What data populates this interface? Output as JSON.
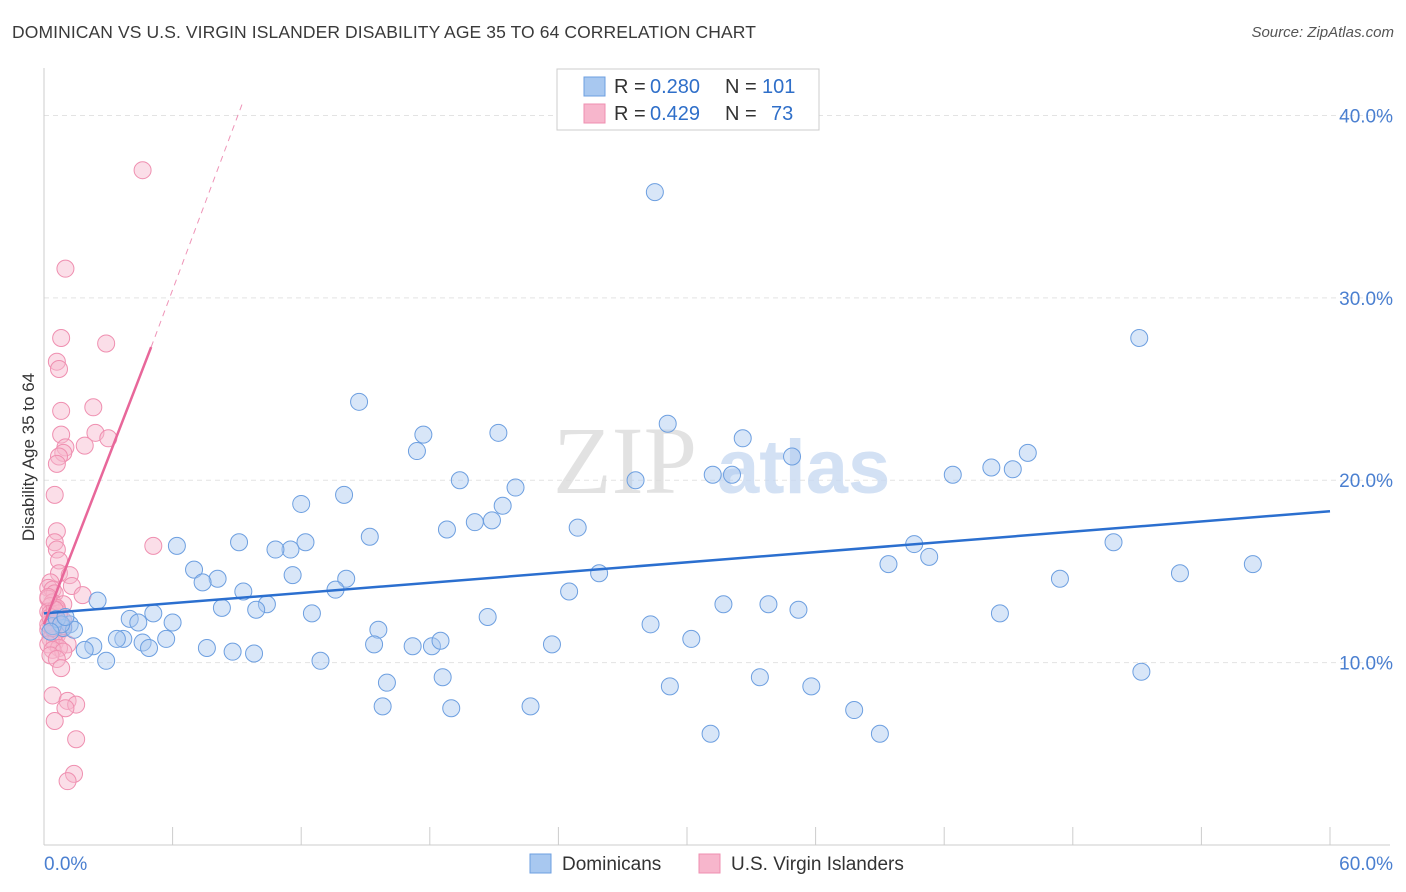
{
  "title": "DOMINICAN VS U.S. VIRGIN ISLANDER DISABILITY AGE 35 TO 64 CORRELATION CHART",
  "source": "Source: ZipAtlas.com",
  "watermark": {
    "zip": "ZIP",
    "atlas": "atlas"
  },
  "colors": {
    "blue_fill": "#a8c8f0",
    "blue_stroke": "#6d9fe0",
    "blue_line": "#2b6fcf",
    "pink_fill": "#f7b6cc",
    "pink_stroke": "#ef8fb0",
    "pink_line": "#e8679a",
    "grid": "#e3e3e3",
    "axis_text": "#4a7fd0"
  },
  "legend": {
    "rows": [
      {
        "r_label": "R =",
        "r_value": "0.280",
        "n_label": "N =",
        "n_value": "101"
      },
      {
        "r_label": "R =",
        "r_value": "0.429",
        "n_label": "N =",
        "n_value": "73"
      }
    ]
  },
  "bottom_legend": [
    "Dominicans",
    "U.S. Virgin Islanders"
  ],
  "chart_data": {
    "type": "scatter",
    "title": "DOMINICAN VS U.S. VIRGIN ISLANDER DISABILITY AGE 35 TO 64 CORRELATION CHART",
    "xlabel": "",
    "ylabel": "Disability Age 35 to 64",
    "xlim": [
      0,
      60
    ],
    "ylim": [
      0,
      42
    ],
    "x_tick_labels": [
      "0.0%",
      "60.0%"
    ],
    "y_ticks": [
      10,
      20,
      30,
      40
    ],
    "y_tick_labels": [
      "10.0%",
      "20.0%",
      "30.0%",
      "40.0%"
    ],
    "series": [
      {
        "name": "Dominicans",
        "R": 0.28,
        "N": 101,
        "trend": {
          "x": [
            0,
            60
          ],
          "y": [
            12.7,
            18.3
          ]
        },
        "points": [
          [
            28.5,
            35.8
          ],
          [
            51.1,
            27.8
          ],
          [
            14.7,
            24.3
          ],
          [
            17.7,
            22.5
          ],
          [
            21.2,
            22.6
          ],
          [
            29.1,
            23.1
          ],
          [
            17.4,
            21.6
          ],
          [
            32.6,
            22.3
          ],
          [
            34.9,
            21.3
          ],
          [
            31.2,
            20.3
          ],
          [
            32.1,
            20.3
          ],
          [
            42.4,
            20.3
          ],
          [
            44.2,
            20.7
          ],
          [
            45.2,
            20.6
          ],
          [
            45.9,
            21.5
          ],
          [
            19.4,
            20.0
          ],
          [
            27.6,
            20.0
          ],
          [
            22.0,
            19.6
          ],
          [
            14.0,
            19.2
          ],
          [
            12.0,
            18.7
          ],
          [
            21.4,
            18.6
          ],
          [
            20.9,
            17.8
          ],
          [
            20.1,
            17.7
          ],
          [
            18.8,
            17.3
          ],
          [
            24.9,
            17.4
          ],
          [
            15.2,
            16.9
          ],
          [
            12.2,
            16.6
          ],
          [
            9.1,
            16.6
          ],
          [
            6.2,
            16.4
          ],
          [
            11.5,
            16.2
          ],
          [
            10.8,
            16.2
          ],
          [
            40.6,
            16.5
          ],
          [
            41.3,
            15.8
          ],
          [
            39.4,
            15.4
          ],
          [
            49.9,
            16.6
          ],
          [
            56.4,
            15.4
          ],
          [
            7.0,
            15.1
          ],
          [
            11.6,
            14.8
          ],
          [
            14.1,
            14.6
          ],
          [
            25.9,
            14.9
          ],
          [
            53.0,
            14.9
          ],
          [
            47.4,
            14.6
          ],
          [
            8.1,
            14.6
          ],
          [
            7.4,
            14.4
          ],
          [
            9.3,
            13.9
          ],
          [
            13.6,
            14.0
          ],
          [
            24.5,
            13.9
          ],
          [
            2.5,
            13.4
          ],
          [
            10.4,
            13.2
          ],
          [
            8.3,
            13.0
          ],
          [
            9.9,
            12.9
          ],
          [
            5.1,
            12.7
          ],
          [
            12.5,
            12.7
          ],
          [
            20.7,
            12.5
          ],
          [
            31.7,
            13.2
          ],
          [
            33.8,
            13.2
          ],
          [
            35.2,
            12.9
          ],
          [
            44.6,
            12.7
          ],
          [
            4.0,
            12.4
          ],
          [
            4.4,
            12.2
          ],
          [
            6.0,
            12.2
          ],
          [
            1.2,
            12.1
          ],
          [
            0.9,
            11.9
          ],
          [
            1.4,
            11.8
          ],
          [
            15.6,
            11.8
          ],
          [
            28.3,
            12.1
          ],
          [
            3.7,
            11.3
          ],
          [
            3.4,
            11.3
          ],
          [
            5.7,
            11.3
          ],
          [
            30.2,
            11.3
          ],
          [
            4.6,
            11.1
          ],
          [
            2.3,
            10.9
          ],
          [
            15.4,
            11.0
          ],
          [
            17.2,
            10.9
          ],
          [
            18.1,
            10.9
          ],
          [
            18.5,
            11.2
          ],
          [
            23.7,
            11.0
          ],
          [
            7.6,
            10.8
          ],
          [
            1.9,
            10.7
          ],
          [
            4.9,
            10.8
          ],
          [
            8.8,
            10.6
          ],
          [
            9.8,
            10.5
          ],
          [
            2.9,
            10.1
          ],
          [
            12.9,
            10.1
          ],
          [
            51.2,
            9.5
          ],
          [
            16.0,
            8.9
          ],
          [
            18.6,
            9.2
          ],
          [
            29.2,
            8.7
          ],
          [
            33.4,
            9.2
          ],
          [
            35.8,
            8.7
          ],
          [
            15.8,
            7.6
          ],
          [
            19.0,
            7.5
          ],
          [
            22.7,
            7.6
          ],
          [
            37.8,
            7.4
          ],
          [
            31.1,
            6.1
          ],
          [
            39.0,
            6.1
          ],
          [
            0.4,
            12.0
          ],
          [
            0.6,
            12.4
          ],
          [
            0.8,
            12.1
          ],
          [
            0.3,
            11.7
          ],
          [
            1.0,
            12.5
          ]
        ]
      },
      {
        "name": "U.S. Virgin Islanders",
        "R": 0.429,
        "N": 73,
        "trend": {
          "x": [
            0,
            5.0
          ],
          "y": [
            12.1,
            27.3
          ]
        },
        "trend_ext": {
          "x": [
            5.0,
            9.3
          ],
          "y": [
            27.3,
            40.8
          ]
        },
        "points": [
          [
            4.6,
            37.0
          ],
          [
            1.0,
            31.6
          ],
          [
            0.8,
            27.8
          ],
          [
            2.9,
            27.5
          ],
          [
            0.6,
            26.5
          ],
          [
            0.7,
            26.1
          ],
          [
            2.3,
            24.0
          ],
          [
            0.8,
            23.8
          ],
          [
            2.4,
            22.6
          ],
          [
            0.8,
            22.5
          ],
          [
            3.0,
            22.3
          ],
          [
            1.9,
            21.9
          ],
          [
            1.0,
            21.8
          ],
          [
            0.9,
            21.5
          ],
          [
            0.7,
            21.3
          ],
          [
            0.6,
            20.9
          ],
          [
            0.5,
            19.2
          ],
          [
            0.6,
            17.2
          ],
          [
            0.5,
            16.6
          ],
          [
            5.1,
            16.4
          ],
          [
            0.6,
            16.2
          ],
          [
            0.7,
            15.6
          ],
          [
            0.7,
            14.9
          ],
          [
            1.2,
            14.8
          ],
          [
            0.3,
            14.4
          ],
          [
            1.3,
            14.2
          ],
          [
            0.2,
            14.1
          ],
          [
            0.4,
            14.0
          ],
          [
            0.5,
            13.8
          ],
          [
            1.8,
            13.7
          ],
          [
            0.2,
            13.5
          ],
          [
            0.4,
            13.3
          ],
          [
            0.9,
            13.2
          ],
          [
            0.3,
            13.1
          ],
          [
            0.6,
            12.9
          ],
          [
            0.2,
            12.8
          ],
          [
            0.4,
            12.6
          ],
          [
            0.7,
            12.5
          ],
          [
            0.9,
            12.3
          ],
          [
            0.3,
            12.2
          ],
          [
            0.5,
            12.0
          ],
          [
            0.8,
            11.9
          ],
          [
            0.2,
            11.8
          ],
          [
            0.4,
            11.6
          ],
          [
            0.6,
            11.5
          ],
          [
            0.3,
            11.3
          ],
          [
            0.5,
            11.1
          ],
          [
            1.1,
            11.0
          ],
          [
            0.2,
            11.0
          ],
          [
            0.7,
            10.8
          ],
          [
            0.4,
            10.7
          ],
          [
            0.9,
            10.6
          ],
          [
            0.3,
            10.4
          ],
          [
            0.6,
            10.2
          ],
          [
            0.8,
            9.7
          ],
          [
            0.4,
            8.2
          ],
          [
            1.1,
            7.9
          ],
          [
            1.5,
            7.7
          ],
          [
            1.0,
            7.5
          ],
          [
            0.5,
            6.8
          ],
          [
            1.5,
            5.8
          ],
          [
            1.4,
            3.9
          ],
          [
            1.1,
            3.5
          ],
          [
            0.3,
            12.7
          ],
          [
            0.5,
            12.4
          ],
          [
            0.2,
            12.1
          ],
          [
            0.7,
            12.7
          ],
          [
            0.4,
            11.9
          ],
          [
            0.6,
            13.0
          ],
          [
            0.3,
            12.5
          ],
          [
            0.9,
            12.0
          ],
          [
            0.5,
            12.9
          ],
          [
            0.2,
            13.6
          ]
        ]
      }
    ]
  }
}
